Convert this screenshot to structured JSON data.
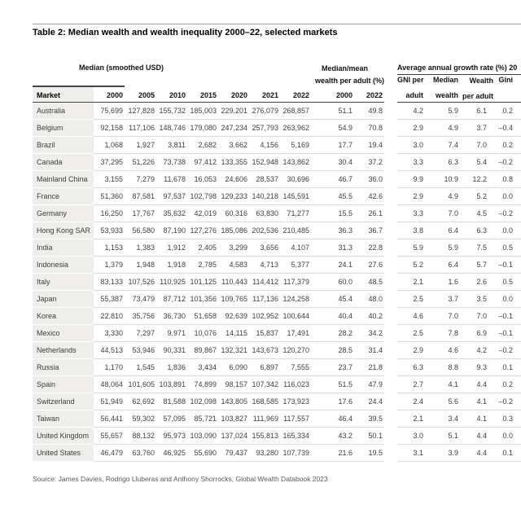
{
  "page": {
    "title": "Table 2: Median wealth and wealth inequality 2000–22, selected markets",
    "source": "Source: James Davies, Rodrigo Lluberas and Anthony Shorrocks, Global Wealth Databook 2023"
  },
  "table": {
    "groups": {
      "median_label": "Median (smoothed USD)",
      "median_mean_line1": "Median/mean",
      "median_mean_line2": "wealth per adult (%)",
      "growth_label": "Average annual growth rate (%) 20"
    },
    "columns": {
      "market": "Market",
      "median_years": [
        "2000",
        "2005",
        "2010",
        "2015",
        "2020",
        "2021",
        "2022"
      ],
      "mm_years": [
        "2000",
        "2022"
      ],
      "growth_line1": [
        "GNI per",
        "Median",
        "Wealth",
        "Gini"
      ],
      "growth_line2": [
        "adult",
        "wealth",
        "per adult",
        ""
      ]
    },
    "rows": [
      {
        "market": "Australia",
        "median": [
          "75,699",
          "127,828",
          "155,732",
          "185,003",
          "229,201",
          "276,079",
          "268,857"
        ],
        "mm": [
          "51.1",
          "49.8"
        ],
        "growth": [
          "4.2",
          "5.9",
          "6.1",
          "0.2"
        ]
      },
      {
        "market": "Belgium",
        "median": [
          "92,158",
          "117,106",
          "148,746",
          "179,080",
          "247,234",
          "257,793",
          "263,962"
        ],
        "mm": [
          "54.9",
          "70.8"
        ],
        "growth": [
          "2.9",
          "4.9",
          "3.7",
          "–0.4"
        ]
      },
      {
        "market": "Brazil",
        "median": [
          "1,068",
          "1,927",
          "3,811",
          "2,682",
          "3,662",
          "4,156",
          "5,169"
        ],
        "mm": [
          "17.7",
          "19.4"
        ],
        "growth": [
          "3.0",
          "7.4",
          "7.0",
          "0.2"
        ]
      },
      {
        "market": "Canada",
        "median": [
          "37,295",
          "51,226",
          "73,738",
          "97,412",
          "133,355",
          "152,948",
          "143,862"
        ],
        "mm": [
          "30.4",
          "37.2"
        ],
        "growth": [
          "3.3",
          "6.3",
          "5.4",
          "–0.2"
        ]
      },
      {
        "market": "Mainland China",
        "median": [
          "3,155",
          "7,279",
          "11,678",
          "16,053",
          "24,606",
          "28,537",
          "30,696"
        ],
        "mm": [
          "46.7",
          "36.0"
        ],
        "growth": [
          "9.9",
          "10.9",
          "12.2",
          "0.8"
        ]
      },
      {
        "market": "France",
        "median": [
          "51,360",
          "87,581",
          "97,537",
          "102,798",
          "129,233",
          "140,218",
          "145,591"
        ],
        "mm": [
          "45.5",
          "42.6"
        ],
        "growth": [
          "2.9",
          "4.9",
          "5.2",
          "0.0"
        ]
      },
      {
        "market": "Germany",
        "median": [
          "16,250",
          "17,767",
          "35,632",
          "42,019",
          "60,316",
          "63,830",
          "71,277"
        ],
        "mm": [
          "15.5",
          "26.1"
        ],
        "growth": [
          "3.3",
          "7.0",
          "4.5",
          "–0.2"
        ]
      },
      {
        "market": "Hong Kong SAR",
        "median": [
          "53,933",
          "56,580",
          "87,190",
          "127,276",
          "185,086",
          "202,536",
          "210,485"
        ],
        "mm": [
          "36.3",
          "36.7"
        ],
        "growth": [
          "3.8",
          "6.4",
          "6.3",
          "0.0"
        ]
      },
      {
        "market": "India",
        "median": [
          "1,153",
          "1,383",
          "1,912",
          "2,405",
          "3,299",
          "3,656",
          "4,107"
        ],
        "mm": [
          "31.3",
          "22.8"
        ],
        "growth": [
          "5.9",
          "5.9",
          "7.5",
          "0.5"
        ]
      },
      {
        "market": "Indonesia",
        "median": [
          "1,379",
          "1,948",
          "1,918",
          "2,785",
          "4,583",
          "4,713",
          "5,377"
        ],
        "mm": [
          "24.1",
          "27.6"
        ],
        "growth": [
          "5.2",
          "6.4",
          "5.7",
          "–0.1"
        ]
      },
      {
        "market": "Italy",
        "median": [
          "83,133",
          "107,526",
          "110,925",
          "101,125",
          "110,443",
          "114,412",
          "117,379"
        ],
        "mm": [
          "60.0",
          "48.5"
        ],
        "growth": [
          "2.1",
          "1.6",
          "2.6",
          "0.5"
        ]
      },
      {
        "market": "Japan",
        "median": [
          "55,387",
          "73,479",
          "87,712",
          "101,356",
          "109,765",
          "117,136",
          "124,258"
        ],
        "mm": [
          "45.4",
          "48.0"
        ],
        "growth": [
          "2.5",
          "3.7",
          "3.5",
          "0.0"
        ]
      },
      {
        "market": "Korea",
        "median": [
          "22,810",
          "35,756",
          "36,730",
          "51,658",
          "92,639",
          "102,952",
          "100,644"
        ],
        "mm": [
          "40.4",
          "40.2"
        ],
        "growth": [
          "4.6",
          "7.0",
          "7.0",
          "–0.1"
        ]
      },
      {
        "market": "Mexico",
        "median": [
          "3,330",
          "7,297",
          "9,971",
          "10,076",
          "14,115",
          "15,837",
          "17,491"
        ],
        "mm": [
          "28.2",
          "34.2"
        ],
        "growth": [
          "2.5",
          "7.8",
          "6.9",
          "–0.1"
        ]
      },
      {
        "market": "Netherlands",
        "median": [
          "44,513",
          "53,946",
          "90,331",
          "89,867",
          "132,321",
          "143,673",
          "120,270"
        ],
        "mm": [
          "28.5",
          "31.4"
        ],
        "growth": [
          "2.9",
          "4.6",
          "4.2",
          "–0.2"
        ]
      },
      {
        "market": "Russia",
        "median": [
          "1,170",
          "1,545",
          "1,836",
          "3,434",
          "6,090",
          "6,897",
          "7,555"
        ],
        "mm": [
          "23.7",
          "21.8"
        ],
        "growth": [
          "6.3",
          "8.8",
          "9.3",
          "0.1"
        ]
      },
      {
        "market": "Spain",
        "median": [
          "48,064",
          "101,605",
          "103,891",
          "74,899",
          "98,157",
          "107,342",
          "116,023"
        ],
        "mm": [
          "51.5",
          "47.9"
        ],
        "growth": [
          "2.7",
          "4.1",
          "4.4",
          "0.2"
        ]
      },
      {
        "market": "Switzerland",
        "median": [
          "51,949",
          "62,692",
          "81,588",
          "102,098",
          "143,805",
          "168,585",
          "173,923"
        ],
        "mm": [
          "17.6",
          "24.4"
        ],
        "growth": [
          "2.4",
          "5.6",
          "4.1",
          "–0.2"
        ]
      },
      {
        "market": "Taiwan",
        "median": [
          "56,441",
          "59,302",
          "57,095",
          "85,721",
          "103,827",
          "111,969",
          "117,557"
        ],
        "mm": [
          "46.4",
          "39.5"
        ],
        "growth": [
          "2.1",
          "3.4",
          "4.1",
          "0.3"
        ]
      },
      {
        "market": "United Kingdom",
        "median": [
          "55,657",
          "88,132",
          "95,973",
          "103,090",
          "137,024",
          "155,813",
          "165,334"
        ],
        "mm": [
          "43.2",
          "50.1"
        ],
        "growth": [
          "3.0",
          "5.1",
          "4.4",
          "0.0"
        ]
      },
      {
        "market": "United States",
        "median": [
          "46,479",
          "63,760",
          "46,925",
          "55,690",
          "79,437",
          "93,280",
          "107,739"
        ],
        "mm": [
          "21.6",
          "19.5"
        ],
        "growth": [
          "3.1",
          "3.9",
          "4.4",
          "0.1"
        ]
      }
    ]
  },
  "colors": {
    "market_column_bg": "#f0eeeb",
    "header_rule": "#454545",
    "row_separator": "#dcdcdc",
    "top_rule": "#a3a3a3",
    "body_text": "#3d3d3d",
    "source_text": "#5a5a5a"
  }
}
